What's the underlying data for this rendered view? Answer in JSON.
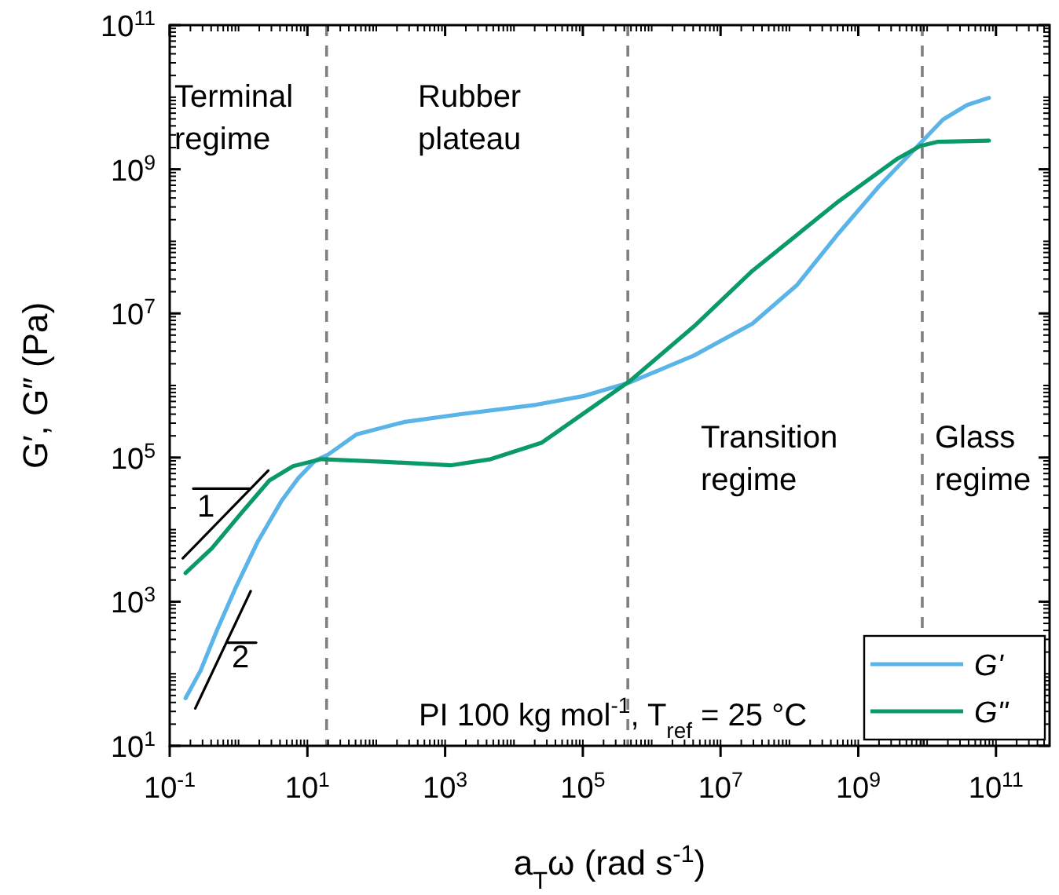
{
  "chart_data": {
    "type": "line",
    "xlabel": "a$_{T}$ω (rad s$^{-1}$)",
    "ylabel": "G′, G″ (Pa)",
    "log": "xy",
    "xlim": [
      0.1,
      600000000000.0
    ],
    "ylim": [
      10,
      100000000000.0
    ],
    "xticks": [
      {
        "value": 0.1,
        "label": "10$^{-1}$"
      },
      {
        "value": 10,
        "label": "10$^{1}$"
      },
      {
        "value": 1000,
        "label": "10$^{3}$"
      },
      {
        "value": 100000,
        "label": "10$^{5}$"
      },
      {
        "value": 10000000.0,
        "label": "10$^{7}$"
      },
      {
        "value": 1000000000.0,
        "label": "10$^{9}$"
      },
      {
        "value": 100000000000.0,
        "label": "10$^{11}$"
      }
    ],
    "yticks": [
      {
        "value": 10,
        "label": "10$^{1}$"
      },
      {
        "value": 1000,
        "label": "10$^{3}$"
      },
      {
        "value": 100000,
        "label": "10$^{5}$"
      },
      {
        "value": 10000000.0,
        "label": "10$^{7}$"
      },
      {
        "value": 1000000000.0,
        "label": "10$^{9}$"
      },
      {
        "value": 100000000000.0,
        "label": "10$^{11}$"
      }
    ],
    "grid": false,
    "legend": "bottom right",
    "marker": "none",
    "line_style": "solid",
    "series": [
      {
        "name": "G'",
        "color": "#5ab4e8",
        "x": [
          0.17,
          0.28,
          0.49,
          0.89,
          1.9,
          4.2,
          7.4,
          13,
          20,
          52,
          250,
          1700,
          21000,
          100000,
          480000,
          4100000.0,
          29000000.0,
          130000000.0,
          520000000.0,
          2000000000.0,
          6600000000.0,
          17000000000.0,
          38000000000.0,
          79000000000.0
        ],
        "values": [
          46,
          110,
          410,
          1500,
          6800,
          25000,
          52000,
          91000,
          110000,
          210000,
          310000,
          400000,
          540000,
          710000,
          1100000,
          2600000.0,
          7200000.0,
          25000000.0,
          130000000.0,
          580000000.0,
          1900000000.0,
          4900000000.0,
          7800000000.0,
          9800000000.0
        ]
      },
      {
        "name": "G\"",
        "color": "#0a9a6a",
        "x": [
          0.17,
          0.41,
          1.1,
          2.8,
          6.2,
          16,
          140,
          1200,
          4600,
          25000,
          480000,
          4100000.0,
          29000000.0,
          520000000.0,
          3700000000.0,
          7900000000.0,
          14000000000.0,
          79000000000.0
        ],
        "values": [
          2500,
          5500,
          17000,
          48000,
          76000,
          95000,
          87000,
          78000,
          95000,
          160000,
          1150000,
          6600000.0,
          39000000.0,
          360000000.0,
          1400000000.0,
          2100000000.0,
          2400000000.0,
          2500000000.0
        ]
      },
      {
        "color": "#000000",
        "x": [
          0.155,
          2.7
        ],
        "values": [
          4000,
          66000
        ]
      },
      {
        "color": "#000000",
        "x": [
          0.22,
          1.45
        ],
        "values": [
          37000,
          37000
        ]
      },
      {
        "color": "#000000",
        "x": [
          0.235,
          1.5
        ],
        "values": [
          33,
          1400
        ]
      },
      {
        "color": "#000000",
        "x": [
          0.69,
          1.8
        ],
        "values": [
          270,
          270
        ]
      }
    ],
    "ref_lines": [
      {
        "axis": "x",
        "value": 19,
        "color": "#808080",
        "line_style": "dashed"
      },
      {
        "axis": "x",
        "value": 450000,
        "color": "#808080",
        "line_style": "dashed"
      },
      {
        "axis": "x",
        "value": 8500000000.0,
        "color": "#808080",
        "line_style": "dashed"
      }
    ],
    "annotations": [
      "Terminal\nregime",
      "Rubber\nplateau",
      "Transition\nregime",
      "Glass\nregime",
      "1",
      "2",
      "PI 100 kg mol$^{-1}$, T$_{ref}$ = 25 °C"
    ]
  }
}
